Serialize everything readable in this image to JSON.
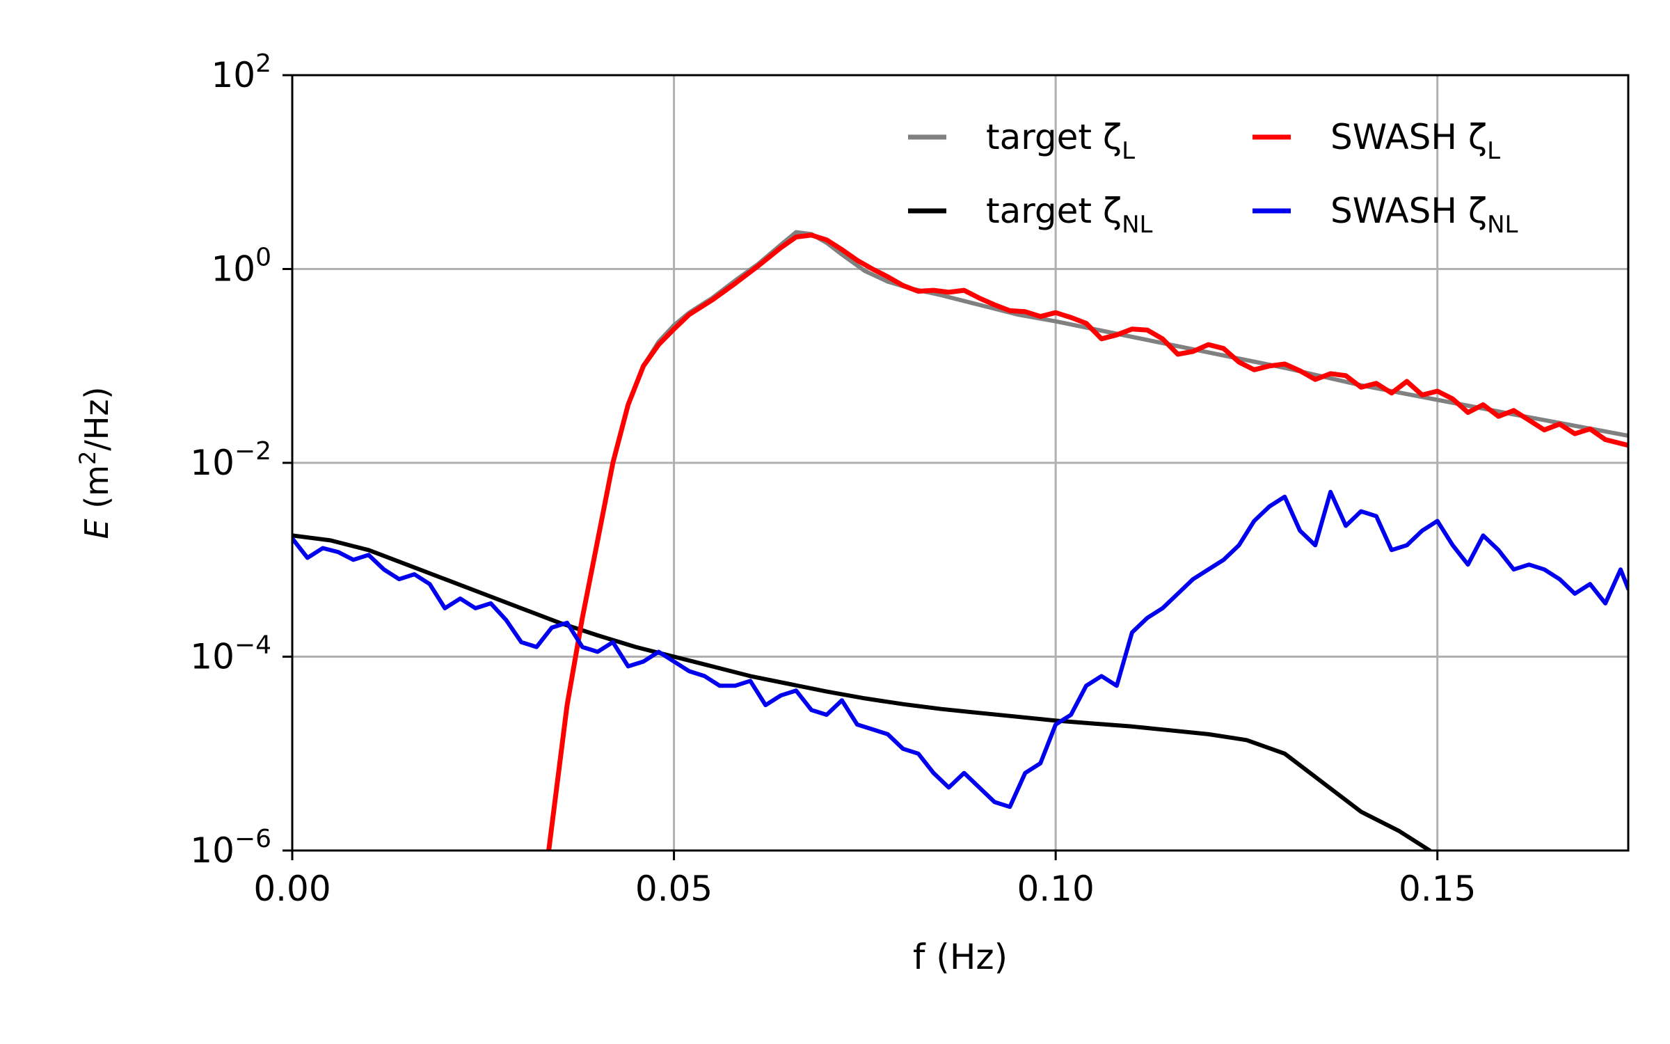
{
  "chart_data": {
    "type": "line",
    "title": "",
    "xlabel": "f (Hz)",
    "ylabel": "E (m²/Hz)",
    "xlim": [
      0.0,
      0.175
    ],
    "ylim_log10": [
      -6,
      2
    ],
    "y_scale": "log",
    "grid": true,
    "legend_position": "top-right",
    "x_ticks": [
      {
        "value": 0.0,
        "label": "0.00"
      },
      {
        "value": 0.05,
        "label": "0.05"
      },
      {
        "value": 0.1,
        "label": "0.10"
      },
      {
        "value": 0.15,
        "label": "0.15"
      }
    ],
    "y_ticks": [
      {
        "exp": 2,
        "base": "10",
        "label": "2"
      },
      {
        "exp": 0,
        "base": "10",
        "label": "0"
      },
      {
        "exp": -2,
        "base": "10",
        "label": "−2"
      },
      {
        "exp": -4,
        "base": "10",
        "label": "−4"
      },
      {
        "exp": -6,
        "base": "10",
        "label": "−6"
      }
    ],
    "series": [
      {
        "name": "target ζL",
        "name_main": "target ζ",
        "name_sub": "L",
        "color": "#808080",
        "x": [
          0.0336,
          0.036,
          0.038,
          0.04,
          0.042,
          0.044,
          0.046,
          0.048,
          0.05,
          0.052,
          0.055,
          0.058,
          0.061,
          0.064,
          0.066,
          0.068,
          0.07,
          0.072,
          0.075,
          0.078,
          0.081,
          0.085,
          0.09,
          0.095,
          0.1,
          0.11,
          0.12,
          0.13,
          0.14,
          0.15,
          0.16,
          0.175
        ],
        "log10": [
          -6.0,
          -4.5,
          -3.6,
          -2.8,
          -2.0,
          -1.4,
          -1.0,
          -0.75,
          -0.58,
          -0.45,
          -0.3,
          -0.12,
          0.05,
          0.25,
          0.38,
          0.36,
          0.27,
          0.15,
          -0.02,
          -0.13,
          -0.2,
          -0.27,
          -0.37,
          -0.47,
          -0.54,
          -0.7,
          -0.86,
          -1.02,
          -1.2,
          -1.35,
          -1.5,
          -1.72
        ]
      },
      {
        "name": "target ζNL",
        "name_main": "target ζ",
        "name_sub": "NL",
        "color": "#000000",
        "x": [
          0.0,
          0.005,
          0.01,
          0.015,
          0.02,
          0.025,
          0.03,
          0.035,
          0.04,
          0.045,
          0.05,
          0.055,
          0.06,
          0.065,
          0.07,
          0.075,
          0.08,
          0.085,
          0.09,
          0.095,
          0.1,
          0.105,
          0.11,
          0.115,
          0.12,
          0.125,
          0.13,
          0.135,
          0.14,
          0.145,
          0.149
        ],
        "log10": [
          -2.75,
          -2.8,
          -2.9,
          -3.05,
          -3.2,
          -3.35,
          -3.5,
          -3.65,
          -3.78,
          -3.9,
          -4.0,
          -4.1,
          -4.2,
          -4.28,
          -4.36,
          -4.43,
          -4.49,
          -4.54,
          -4.58,
          -4.62,
          -4.66,
          -4.69,
          -4.72,
          -4.76,
          -4.8,
          -4.86,
          -5.0,
          -5.3,
          -5.6,
          -5.8,
          -6.0
        ]
      },
      {
        "name": "SWASH ζL",
        "name_main": "SWASH ζ",
        "name_sub": "L",
        "color": "#ff0000",
        "x": [
          0.0336,
          0.036,
          0.038,
          0.04,
          0.042,
          0.044,
          0.046,
          0.048,
          0.05,
          0.052,
          0.055,
          0.058,
          0.061,
          0.064,
          0.066,
          0.068,
          0.07,
          0.072,
          0.074,
          0.076,
          0.078,
          0.08,
          0.082,
          0.084,
          0.086,
          0.088,
          0.09,
          0.092,
          0.094,
          0.096,
          0.098,
          0.1,
          0.102,
          0.104,
          0.106,
          0.108,
          0.11,
          0.112,
          0.114,
          0.116,
          0.118,
          0.12,
          0.122,
          0.124,
          0.126,
          0.128,
          0.13,
          0.132,
          0.134,
          0.136,
          0.138,
          0.14,
          0.142,
          0.144,
          0.146,
          0.148,
          0.15,
          0.152,
          0.154,
          0.156,
          0.158,
          0.16,
          0.162,
          0.164,
          0.166,
          0.168,
          0.17,
          0.172,
          0.175
        ],
        "log10": [
          -6.0,
          -4.5,
          -3.6,
          -2.8,
          -2.0,
          -1.4,
          -1.0,
          -0.78,
          -0.62,
          -0.47,
          -0.32,
          -0.15,
          0.03,
          0.22,
          0.33,
          0.35,
          0.3,
          0.2,
          0.09,
          0.0,
          -0.08,
          -0.17,
          -0.23,
          -0.22,
          -0.24,
          -0.22,
          -0.3,
          -0.37,
          -0.43,
          -0.44,
          -0.49,
          -0.45,
          -0.5,
          -0.56,
          -0.72,
          -0.68,
          -0.62,
          -0.63,
          -0.72,
          -0.88,
          -0.85,
          -0.78,
          -0.82,
          -0.96,
          -1.04,
          -1.0,
          -0.98,
          -1.05,
          -1.14,
          -1.08,
          -1.1,
          -1.22,
          -1.18,
          -1.28,
          -1.16,
          -1.3,
          -1.26,
          -1.34,
          -1.48,
          -1.4,
          -1.52,
          -1.46,
          -1.56,
          -1.66,
          -1.6,
          -1.7,
          -1.65,
          -1.76,
          -1.82
        ]
      },
      {
        "name": "SWASH ζNL",
        "name_main": "SWASH ζ",
        "name_sub": "NL",
        "color": "#0000ee",
        "x": [
          0.0,
          0.002,
          0.004,
          0.006,
          0.008,
          0.01,
          0.012,
          0.014,
          0.016,
          0.018,
          0.02,
          0.022,
          0.024,
          0.026,
          0.028,
          0.03,
          0.032,
          0.034,
          0.036,
          0.038,
          0.04,
          0.042,
          0.044,
          0.046,
          0.048,
          0.05,
          0.052,
          0.054,
          0.056,
          0.058,
          0.06,
          0.062,
          0.064,
          0.066,
          0.068,
          0.07,
          0.072,
          0.074,
          0.076,
          0.078,
          0.08,
          0.082,
          0.084,
          0.086,
          0.088,
          0.09,
          0.092,
          0.094,
          0.096,
          0.098,
          0.1,
          0.102,
          0.104,
          0.106,
          0.108,
          0.11,
          0.112,
          0.114,
          0.116,
          0.118,
          0.12,
          0.122,
          0.124,
          0.126,
          0.128,
          0.13,
          0.132,
          0.134,
          0.136,
          0.138,
          0.14,
          0.142,
          0.144,
          0.146,
          0.148,
          0.15,
          0.152,
          0.154,
          0.156,
          0.158,
          0.16,
          0.162,
          0.164,
          0.166,
          0.168,
          0.17,
          0.172,
          0.174,
          0.175
        ],
        "log10": [
          -2.78,
          -2.98,
          -2.88,
          -2.92,
          -3.0,
          -2.95,
          -3.1,
          -3.2,
          -3.15,
          -3.25,
          -3.5,
          -3.4,
          -3.5,
          -3.45,
          -3.62,
          -3.85,
          -3.9,
          -3.7,
          -3.65,
          -3.9,
          -3.95,
          -3.85,
          -4.1,
          -4.05,
          -3.95,
          -4.05,
          -4.15,
          -4.2,
          -4.3,
          -4.3,
          -4.25,
          -4.5,
          -4.4,
          -4.35,
          -4.55,
          -4.6,
          -4.45,
          -4.7,
          -4.75,
          -4.8,
          -4.95,
          -5.0,
          -5.2,
          -5.35,
          -5.2,
          -5.35,
          -5.5,
          -5.55,
          -5.2,
          -5.1,
          -4.7,
          -4.6,
          -4.3,
          -4.2,
          -4.3,
          -3.75,
          -3.6,
          -3.5,
          -3.35,
          -3.2,
          -3.1,
          -3.0,
          -2.85,
          -2.6,
          -2.45,
          -2.35,
          -2.7,
          -2.85,
          -2.3,
          -2.65,
          -2.5,
          -2.55,
          -2.9,
          -2.85,
          -2.7,
          -2.6,
          -2.85,
          -3.05,
          -2.75,
          -2.9,
          -3.1,
          -3.05,
          -3.1,
          -3.2,
          -3.35,
          -3.25,
          -3.45,
          -3.1,
          -3.3
        ]
      }
    ]
  }
}
